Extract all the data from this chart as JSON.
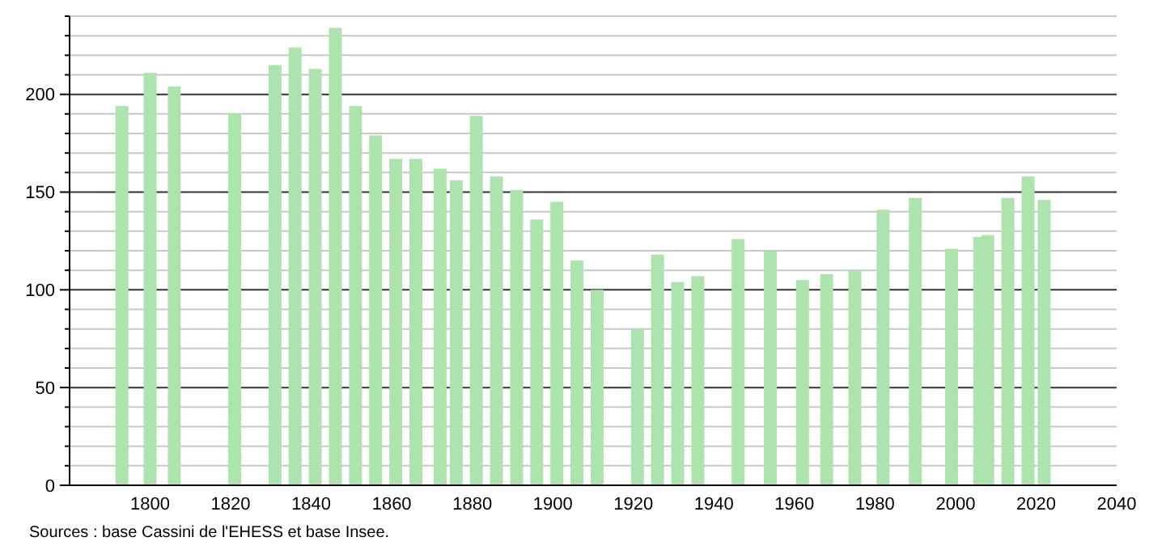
{
  "chart_data": {
    "type": "bar",
    "x": [
      1793,
      1800,
      1806,
      1821,
      1831,
      1836,
      1841,
      1846,
      1851,
      1856,
      1861,
      1866,
      1872,
      1876,
      1881,
      1886,
      1891,
      1896,
      1901,
      1906,
      1911,
      1921,
      1926,
      1931,
      1936,
      1946,
      1954,
      1962,
      1968,
      1975,
      1982,
      1990,
      1999,
      2006,
      2008,
      2013,
      2018,
      2022
    ],
    "values": [
      194,
      211,
      204,
      190,
      215,
      224,
      213,
      234,
      194,
      179,
      167,
      167,
      162,
      156,
      189,
      158,
      151,
      136,
      145,
      115,
      100,
      80,
      118,
      104,
      107,
      126,
      120,
      105,
      108,
      110,
      141,
      147,
      121,
      127,
      128,
      147,
      158,
      146
    ],
    "color": "#ade4ad",
    "xlim": [
      1780,
      2040
    ],
    "xticks": [
      1800,
      1820,
      1840,
      1860,
      1880,
      1900,
      1920,
      1940,
      1960,
      1980,
      2000,
      2020,
      2040
    ],
    "ylim": [
      0,
      240
    ],
    "yticks": [
      0,
      {
        "value": 10,
        "label": null
      },
      {
        "value": 20,
        "label": null
      },
      {
        "value": 30,
        "label": null
      },
      {
        "value": 40,
        "label": null
      },
      50,
      {
        "value": 60,
        "label": null
      },
      {
        "value": 70,
        "label": null
      },
      {
        "value": 80,
        "label": null
      },
      {
        "value": 90,
        "label": null
      },
      100,
      {
        "value": 110,
        "label": null
      },
      {
        "value": 120,
        "label": null
      },
      {
        "value": 130,
        "label": null
      },
      {
        "value": 140,
        "label": null
      },
      150,
      {
        "value": 160,
        "label": null
      },
      {
        "value": 170,
        "label": null
      },
      {
        "value": 180,
        "label": null
      },
      {
        "value": 190,
        "label": null
      },
      200,
      {
        "value": 210,
        "label": null
      },
      {
        "value": 220,
        "label": null
      },
      {
        "value": 230,
        "label": null
      },
      {
        "value": 240,
        "label": null
      }
    ],
    "grid": true,
    "annotations": [
      "Sources : base Cassini de l'EHESS et base Insee."
    ]
  }
}
